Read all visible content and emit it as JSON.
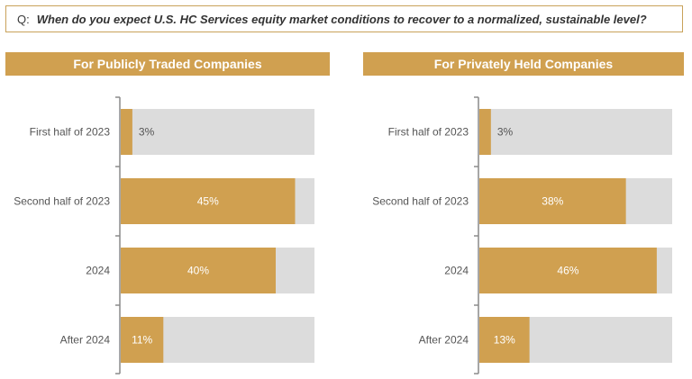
{
  "question": {
    "prefix": "Q:",
    "text": "When do you expect U.S. HC Services equity market conditions to recover to a normalized, sustainable level?"
  },
  "colors": {
    "bar": "#d0a050",
    "track": "#dcdcdc",
    "label_inside": "#ffffff",
    "label_outside": "#555555"
  },
  "chart_data": [
    {
      "type": "bar",
      "title": "For Publicly Traded Companies",
      "orientation": "horizontal",
      "categories": [
        "First half of 2023",
        "Second half of 2023",
        "2024",
        "After 2024"
      ],
      "values": [
        3,
        45,
        40,
        11
      ],
      "value_labels": [
        "3%",
        "45%",
        "40%",
        "11%"
      ],
      "xlim": [
        0,
        50
      ],
      "grid": false,
      "legend": "none"
    },
    {
      "type": "bar",
      "title": "For Privately Held Companies",
      "orientation": "horizontal",
      "categories": [
        "First half of 2023",
        "Second half of 2023",
        "2024",
        "After 2024"
      ],
      "values": [
        3,
        38,
        46,
        13
      ],
      "value_labels": [
        "3%",
        "38%",
        "46%",
        "13%"
      ],
      "xlim": [
        0,
        50
      ],
      "grid": false,
      "legend": "none"
    }
  ]
}
